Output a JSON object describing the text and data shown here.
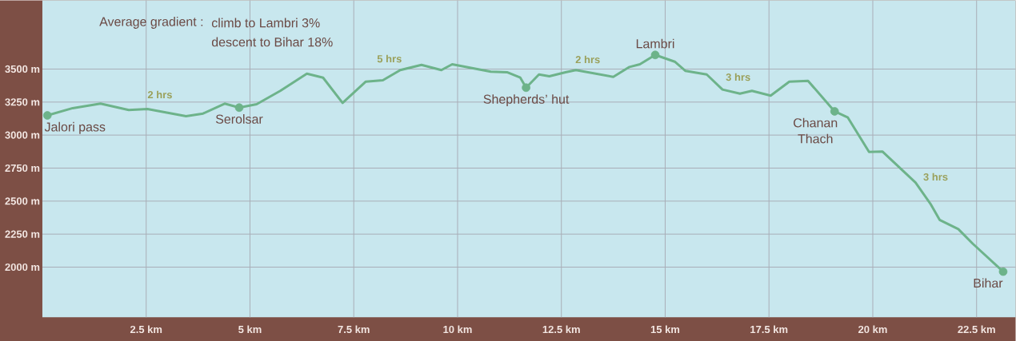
{
  "chart_data": {
    "type": "line",
    "xlim": [
      0,
      23.44
    ],
    "ylim": [
      1620,
      4020
    ],
    "xticks": [
      {
        "value": 2.5,
        "label": "2.5 km"
      },
      {
        "value": 5,
        "label": "5 km"
      },
      {
        "value": 7.5,
        "label": "7.5 km"
      },
      {
        "value": 10,
        "label": "10 km"
      },
      {
        "value": 12.5,
        "label": "12.5 km"
      },
      {
        "value": 15,
        "label": "15 km"
      },
      {
        "value": 17.5,
        "label": "17.5 km"
      },
      {
        "value": 20,
        "label": "20 km"
      },
      {
        "value": 22.5,
        "label": "22.5 km"
      }
    ],
    "yticks": [
      {
        "value": 2000,
        "label": "2000 m"
      },
      {
        "value": 2250,
        "label": "2250 m"
      },
      {
        "value": 2500,
        "label": "2500 m"
      },
      {
        "value": 2750,
        "label": "2750 m"
      },
      {
        "value": 3000,
        "label": "3000 m"
      },
      {
        "value": 3250,
        "label": "3250 m"
      },
      {
        "value": 3500,
        "label": "3500 m"
      }
    ],
    "grid": true,
    "series": [
      {
        "color": "#6db38a",
        "x": [
          0.12,
          0.73,
          1.4,
          2.08,
          2.53,
          3.46,
          3.87,
          4.39,
          4.74,
          5.16,
          5.73,
          6.37,
          6.76,
          7.23,
          7.79,
          8.2,
          8.62,
          9.13,
          9.61,
          9.87,
          10.8,
          11.19,
          11.51,
          11.65,
          11.96,
          12.21,
          12.6,
          12.85,
          13.75,
          14.14,
          14.39,
          14.76,
          15.23,
          15.49,
          16.0,
          16.38,
          16.8,
          17.09,
          17.54,
          17.99,
          18.44,
          19.08,
          19.4,
          19.91,
          20.23,
          21.03,
          21.39,
          21.61,
          22.06,
          22.41,
          23.14
        ],
        "values": [
          3149,
          3204,
          3238,
          3190,
          3198,
          3143,
          3163,
          3238,
          3208,
          3234,
          3335,
          3465,
          3435,
          3244,
          3405,
          3415,
          3492,
          3532,
          3492,
          3536,
          3480,
          3476,
          3435,
          3359,
          3459,
          3445,
          3476,
          3492,
          3441,
          3516,
          3536,
          3607,
          3556,
          3486,
          3459,
          3345,
          3314,
          3335,
          3299,
          3405,
          3411,
          3180,
          3133,
          2872,
          2876,
          2640,
          2479,
          2358,
          2288,
          2177,
          1966
        ]
      },
      {
        "type": "scatter",
        "color": "#6db38a",
        "marker": "circle",
        "x": [
          0.12,
          4.74,
          11.65,
          14.76,
          19.08,
          23.14
        ],
        "values": [
          3149,
          3208,
          3359,
          3607,
          3180,
          1966
        ],
        "value_labels": [
          "Jalori pass",
          "Serolsar",
          "Shepherds’ hut",
          "Lambri",
          "Chanan Thach",
          "Bihar"
        ]
      }
    ],
    "annotations": [
      "Average gradient :",
      "climb to Lambri   3%",
      "descent to Bihar  18%",
      "2 hrs",
      "5 hrs",
      "2 hrs",
      "3 hrs",
      "3 hrs"
    ]
  }
}
